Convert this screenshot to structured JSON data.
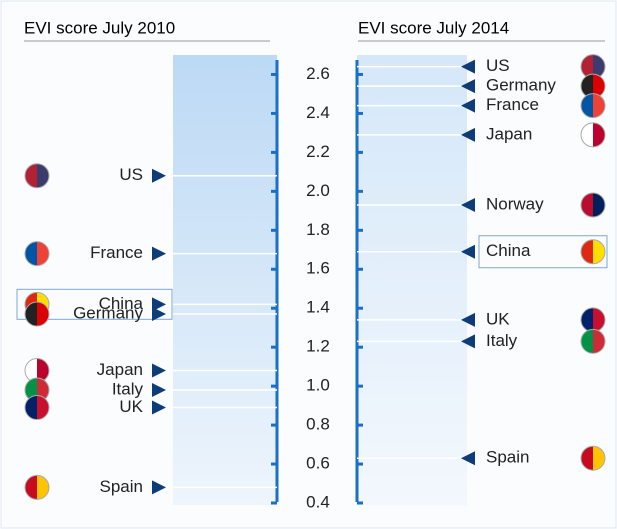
{
  "chart_data": {
    "type": "dot",
    "ylim": [
      0.4,
      2.7
    ],
    "yticks": [
      {
        "value": 0.4,
        "label": "0.4"
      },
      0.6,
      0.8,
      {
        "value": 1,
        "label": "1.0"
      },
      1.2,
      1.4,
      1.6,
      1.8,
      {
        "value": 2,
        "label": "2.0"
      },
      2.2,
      2.4,
      2.6
    ],
    "highlight": "China",
    "panels": [
      {
        "title": "EVI score July 2010",
        "categories": [
          "US",
          "France",
          "China",
          "Germany",
          "Japan",
          "Italy",
          "UK",
          "Spain"
        ],
        "values": [
          2.08,
          1.68,
          1.42,
          1.37,
          1.08,
          0.98,
          0.89,
          0.48
        ],
        "colors": [
          [
            "#b22234",
            "#3c3b6e"
          ],
          [
            "#0055a4",
            "#ef4135"
          ],
          [
            "#de2910",
            "#ffde00"
          ],
          [
            "#222222",
            "#dd0000"
          ],
          [
            "#ffffff",
            "#bc002d"
          ],
          [
            "#009246",
            "#ce2b37"
          ],
          [
            "#012169",
            "#c8102e"
          ],
          [
            "#c60b1e",
            "#ffc400"
          ]
        ]
      },
      {
        "title": "EVI score July 2014",
        "categories": [
          "US",
          "Germany",
          "France",
          "Japan",
          "Norway",
          "China",
          "UK",
          "Italy",
          "Spain"
        ],
        "values": [
          2.64,
          2.54,
          2.44,
          2.29,
          1.93,
          1.69,
          1.34,
          1.23,
          0.63
        ],
        "colors": [
          [
            "#b22234",
            "#3c3b6e"
          ],
          [
            "#222222",
            "#dd0000"
          ],
          [
            "#0055a4",
            "#ef4135"
          ],
          [
            "#ffffff",
            "#bc002d"
          ],
          [
            "#ba0c2f",
            "#00205b"
          ],
          [
            "#de2910",
            "#ffde00"
          ],
          [
            "#012169",
            "#c8102e"
          ],
          [
            "#009246",
            "#ce2b37"
          ],
          [
            "#c60b1e",
            "#ffc400"
          ]
        ]
      }
    ]
  }
}
